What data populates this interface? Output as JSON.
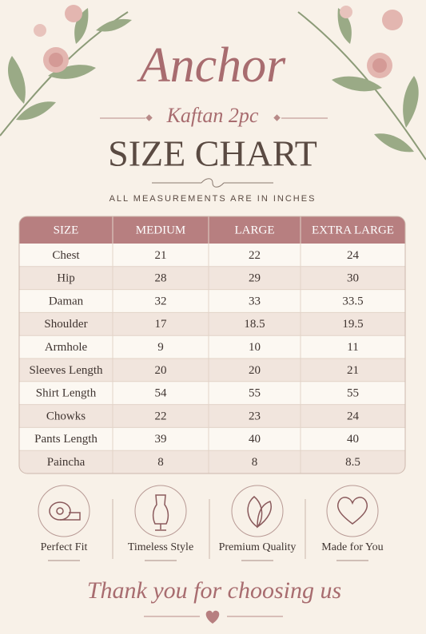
{
  "brand": "Anchor",
  "collection": "Kaftan 2pc",
  "title": "SIZE CHART",
  "subtitle": "ALL MEASUREMENTS ARE IN INCHES",
  "table": {
    "header": [
      "SIZE",
      "MEDIUM",
      "LARGE",
      "EXTRA LARGE"
    ],
    "rows": [
      [
        "Chest",
        "21",
        "22",
        "24"
      ],
      [
        "Hip",
        "28",
        "29",
        "30"
      ],
      [
        "Daman",
        "32",
        "33",
        "33.5"
      ],
      [
        "Shoulder",
        "17",
        "18.5",
        "19.5"
      ],
      [
        "Armhole",
        "9",
        "10",
        "11"
      ],
      [
        "Sleeves Length",
        "20",
        "20",
        "21"
      ],
      [
        "Shirt Length",
        "54",
        "55",
        "55"
      ],
      [
        "Chowks",
        "22",
        "23",
        "24"
      ],
      [
        "Pants Length",
        "39",
        "40",
        "40"
      ],
      [
        "Paincha",
        "8",
        "8",
        "8.5"
      ]
    ]
  },
  "features": [
    "Perfect Fit",
    "Timeless Style",
    "Premium Quality",
    "Made for You"
  ],
  "footer": "Thank you for choosing us"
}
